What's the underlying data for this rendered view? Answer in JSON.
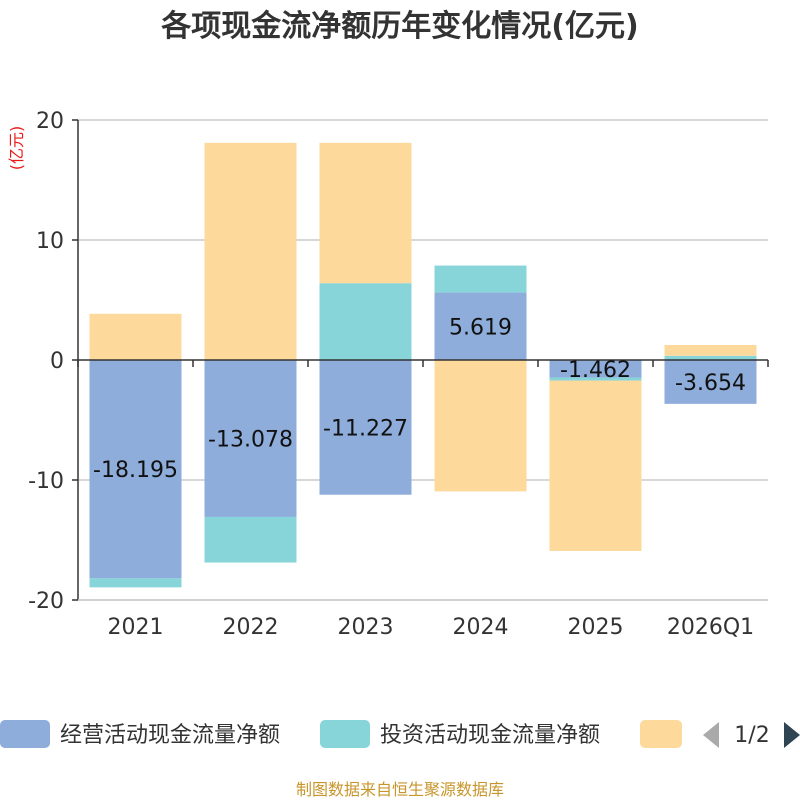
{
  "chart_data": {
    "type": "bar",
    "stacked": true,
    "title": "各项现金流净额历年变化情况(亿元)",
    "ylabel": "(亿元)",
    "ylim": [
      -20,
      20
    ],
    "yticks": [
      20,
      10,
      0,
      -10,
      -20
    ],
    "categories": [
      "2021",
      "2022",
      "2023",
      "2024",
      "2025",
      "2026Q1"
    ],
    "series": [
      {
        "name": "经营活动现金流量净额",
        "color": "#8eaddb",
        "values": [
          -18.195,
          -13.078,
          -11.227,
          5.619,
          -1.462,
          -3.654
        ],
        "show_labels": true
      },
      {
        "name": "投资活动现金流量净额",
        "color": "#87d5d8",
        "values": [
          -0.75,
          -3.8,
          6.4,
          2.25,
          -0.25,
          0.35
        ],
        "show_labels": false
      },
      {
        "name": "",
        "color": "#fdd99b",
        "values": [
          3.85,
          18.1,
          11.7,
          -10.95,
          -14.2,
          0.9
        ],
        "show_labels": false
      }
    ],
    "data_labels": [
      "-18.195",
      "-13.078",
      "-11.227",
      "5.619",
      "-1.462",
      "-3.654"
    ]
  },
  "legend": {
    "items": [
      "经营活动现金流量净额",
      "投资活动现金流量净额",
      ""
    ],
    "page": "1/2"
  },
  "footer": "制图数据来自恒生聚源数据库"
}
